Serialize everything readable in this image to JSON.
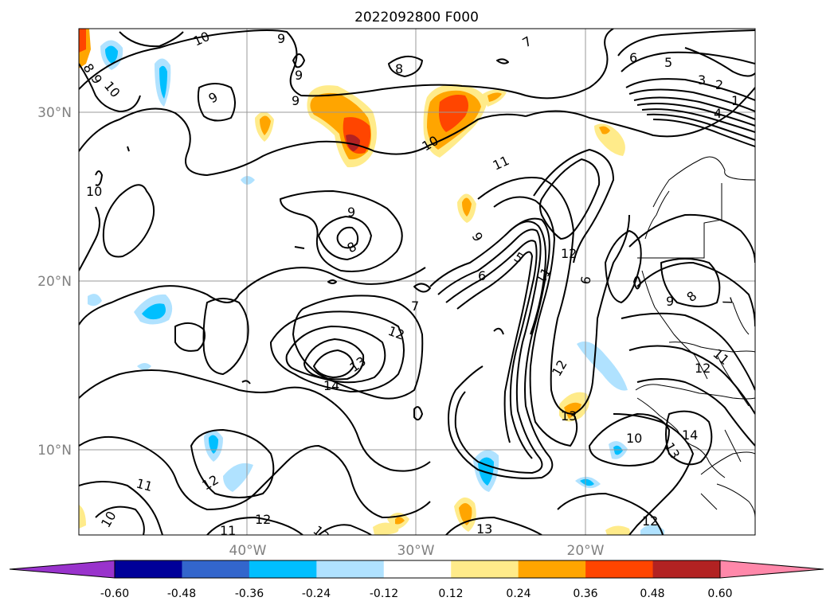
{
  "title": "2022092800 F000",
  "lat_labels": [
    "30°N",
    "20°N",
    "10°N"
  ],
  "lon_labels": [
    "40°W",
    "30°W",
    "20°W"
  ],
  "colorbar": {
    "ticks": [
      "-0.60",
      "-0.48",
      "-0.36",
      "-0.24",
      "-0.12",
      "0.12",
      "0.24",
      "0.36",
      "0.48",
      "0.60"
    ],
    "colors": [
      "#9933cc",
      "#000099",
      "#3366cc",
      "#00bfff",
      "#b0e2ff",
      "#ffffff",
      "#ffeb8a",
      "#ffa500",
      "#ff4500",
      "#b22222",
      "#ff88aa"
    ]
  },
  "contour_labels": [
    "10",
    "9",
    "8",
    "7",
    "6",
    "5",
    "5",
    "3",
    "2",
    "1",
    "4",
    "11",
    "12",
    "13",
    "14",
    "10",
    "8",
    "7",
    "6",
    "12",
    "9",
    "10",
    "11",
    "12",
    "13",
    "13",
    "11",
    "12",
    "10",
    "11",
    "12",
    "13",
    "14",
    "8",
    "9",
    "10",
    "9",
    "9",
    "9",
    "6",
    "9",
    "8",
    "7",
    "11",
    "12",
    "13",
    "10",
    "12",
    "9"
  ]
}
